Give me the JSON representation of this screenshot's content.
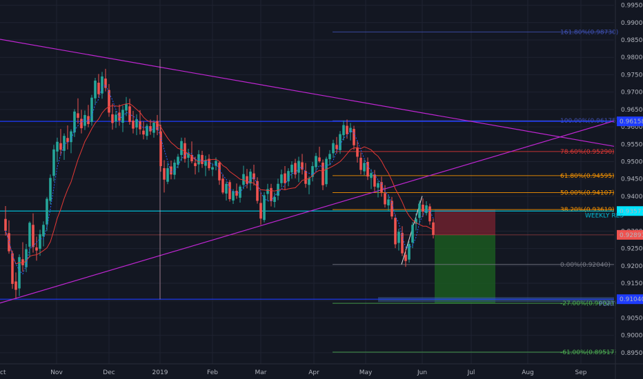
{
  "colors": {
    "background": "#131722",
    "grid": "#1f2331",
    "bull": "#26a69a",
    "bear": "#ef5350",
    "ma_red": "#e53935",
    "ma_blue": "#2962ff",
    "trendline": "#c026d3",
    "weekly_res": "#00bcd4",
    "support": "#1e3cff",
    "fib_100": "#3f51b5",
    "fib_786": "#e53935",
    "fib_618": "#ff9800",
    "fib_0": "#787b86",
    "fib_neg": "#4caf50",
    "fib_ext": "#3f51b5",
    "tag_blue": "#1e3cff",
    "tag_cyan": "#00e5ff",
    "tag_red": "#ef5350",
    "risk_zone": "#7a2330",
    "reward_zone": "#1b5e20",
    "support_zone": "#3b5b8c"
  },
  "chart_data": {
    "type": "candlestick",
    "instrument": "USD/CHF (daily)",
    "x_labels": [
      "ct",
      "Nov",
      "Dec",
      "2019",
      "Feb",
      "Mar",
      "Apr",
      "May",
      "Jun",
      "Jul",
      "Aug",
      "Sep"
    ],
    "y_ticks": [
      "0.99500",
      "0.99000",
      "0.98500",
      "0.98000",
      "0.97500",
      "0.97000",
      "0.96500",
      "0.96000",
      "0.95500",
      "0.95000",
      "0.94500",
      "0.94000",
      "0.93500",
      "0.93000",
      "0.92500",
      "0.92000",
      "0.91500",
      "0.91000",
      "0.90500",
      "0.90000",
      "0.89500"
    ],
    "ylim": [
      0.8918,
      0.9965
    ],
    "price_tags": [
      {
        "label": "0.96158",
        "value": 0.96158,
        "kind": "blue"
      },
      {
        "label": "0.93577",
        "value": 0.93577,
        "kind": "cyan"
      },
      {
        "label": "0.92891",
        "value": 0.92891,
        "kind": "red"
      },
      {
        "label": "0.91040",
        "value": 0.9104,
        "kind": "blue"
      }
    ],
    "fib_levels": [
      {
        "label": "161.80%(0.98730)",
        "value": 0.9873,
        "kind": "fib_ext"
      },
      {
        "label": "100.00%(0.96175)",
        "value": 0.96175,
        "kind": "fib_100"
      },
      {
        "label": "78.60%(0.95290)",
        "value": 0.9529,
        "kind": "fib_786"
      },
      {
        "label": "61.80%(0.94595)",
        "value": 0.94595,
        "kind": "fib_618"
      },
      {
        "label": "50.00%(0.94107)",
        "value": 0.94107,
        "kind": "fib_618"
      },
      {
        "label": "38.20%(0.93619)",
        "value": 0.93619,
        "kind": "fib_618"
      },
      {
        "label": "0.00%(0.92040)",
        "value": 0.9204,
        "kind": "fib_0"
      },
      {
        "label": "-27.00%(0.90923)",
        "value": 0.90923,
        "kind": "fib_neg"
      },
      {
        "label": "-61.00%(0.89517)",
        "value": 0.89517,
        "kind": "fib_neg"
      }
    ],
    "annotations": {
      "weekly_res_label": "WEEKLY RES",
      "support_label": "PORT",
      "weekly_res_price": 0.93577,
      "support_price": 0.9104,
      "entry_price": 0.92891,
      "stop_price": 0.93619,
      "target_price": 0.90923
    },
    "candles": [
      [
        0.9335,
        0.9372,
        0.9287,
        0.9301
      ],
      [
        0.9294,
        0.9331,
        0.9235,
        0.9242
      ],
      [
        0.9236,
        0.9244,
        0.9134,
        0.9148
      ],
      [
        0.9155,
        0.9181,
        0.9106,
        0.9131
      ],
      [
        0.9135,
        0.9233,
        0.9113,
        0.9225
      ],
      [
        0.9219,
        0.9268,
        0.9183,
        0.9202
      ],
      [
        0.9196,
        0.9263,
        0.9182,
        0.9248
      ],
      [
        0.9255,
        0.9328,
        0.9224,
        0.9324
      ],
      [
        0.9318,
        0.9351,
        0.9238,
        0.9254
      ],
      [
        0.9253,
        0.9284,
        0.9215,
        0.9244
      ],
      [
        0.9249,
        0.9304,
        0.9229,
        0.9291
      ],
      [
        0.9285,
        0.9328,
        0.9256,
        0.9318
      ],
      [
        0.9319,
        0.9398,
        0.9301,
        0.9393
      ],
      [
        0.9387,
        0.9463,
        0.9377,
        0.9453
      ],
      [
        0.9459,
        0.9548,
        0.9443,
        0.9535
      ],
      [
        0.9529,
        0.9569,
        0.9499,
        0.9557
      ],
      [
        0.9553,
        0.9594,
        0.9517,
        0.9534
      ],
      [
        0.9531,
        0.9581,
        0.9505,
        0.9574
      ],
      [
        0.9568,
        0.9604,
        0.9535,
        0.9556
      ],
      [
        0.9556,
        0.9593,
        0.9524,
        0.9587
      ],
      [
        0.9584,
        0.9651,
        0.9571,
        0.9644
      ],
      [
        0.9639,
        0.9682,
        0.9609,
        0.9626
      ],
      [
        0.9623,
        0.9649,
        0.9581,
        0.9596
      ],
      [
        0.9603,
        0.9647,
        0.9591,
        0.9634
      ],
      [
        0.9631,
        0.9663,
        0.9599,
        0.9608
      ],
      [
        0.9614,
        0.9692,
        0.9603,
        0.9684
      ],
      [
        0.9682,
        0.9741,
        0.9664,
        0.9733
      ],
      [
        0.9727,
        0.9752,
        0.9684,
        0.9694
      ],
      [
        0.9696,
        0.9758,
        0.9681,
        0.9745
      ],
      [
        0.9739,
        0.9767,
        0.9702,
        0.9712
      ],
      [
        0.9706,
        0.9723,
        0.9629,
        0.9641
      ],
      [
        0.9636,
        0.9667,
        0.9592,
        0.9611
      ],
      [
        0.9615,
        0.9646,
        0.9597,
        0.9635
      ],
      [
        0.9641,
        0.9664,
        0.9603,
        0.9618
      ],
      [
        0.9612,
        0.9661,
        0.9585,
        0.9649
      ],
      [
        0.9647,
        0.9686,
        0.9631,
        0.9665
      ],
      [
        0.9659,
        0.9681,
        0.9606,
        0.9614
      ],
      [
        0.9618,
        0.9646,
        0.9581,
        0.9595
      ],
      [
        0.9598,
        0.9636,
        0.9576,
        0.9622
      ],
      [
        0.9616,
        0.9648,
        0.9578,
        0.9593
      ],
      [
        0.9589,
        0.9616,
        0.9564,
        0.9578
      ],
      [
        0.9574,
        0.9609,
        0.9563,
        0.9603
      ],
      [
        0.9602,
        0.9621,
        0.9577,
        0.9587
      ],
      [
        0.9583,
        0.9619,
        0.9569,
        0.9612
      ],
      [
        0.9617,
        0.9634,
        0.9576,
        0.9591
      ],
      [
        0.9587,
        0.9606,
        0.9471,
        0.9487
      ],
      [
        0.9481,
        0.9504,
        0.9411,
        0.9448
      ],
      [
        0.9442,
        0.9496,
        0.9435,
        0.9481
      ],
      [
        0.9486,
        0.9503,
        0.9449,
        0.9463
      ],
      [
        0.9462,
        0.9506,
        0.9449,
        0.9497
      ],
      [
        0.9491,
        0.9522,
        0.9481,
        0.9514
      ],
      [
        0.9519,
        0.9569,
        0.9502,
        0.9559
      ],
      [
        0.9553,
        0.9569,
        0.9497,
        0.9508
      ],
      [
        0.9511,
        0.9537,
        0.9482,
        0.9524
      ],
      [
        0.9519,
        0.9558,
        0.9495,
        0.9501
      ],
      [
        0.9496,
        0.9514,
        0.9463,
        0.9487
      ],
      [
        0.9492,
        0.9533,
        0.9469,
        0.9521
      ],
      [
        0.9519,
        0.9531,
        0.9482,
        0.9493
      ],
      [
        0.9488,
        0.9517,
        0.9458,
        0.9504
      ],
      [
        0.9508,
        0.9521,
        0.9474,
        0.9481
      ],
      [
        0.9477,
        0.9496,
        0.9458,
        0.9484
      ],
      [
        0.9488,
        0.9512,
        0.9475,
        0.9502
      ],
      [
        0.9497,
        0.9501,
        0.9433,
        0.9446
      ],
      [
        0.9451,
        0.9464,
        0.9406,
        0.9411
      ],
      [
        0.9408,
        0.9443,
        0.9388,
        0.9436
      ],
      [
        0.9441,
        0.9447,
        0.9385,
        0.9392
      ],
      [
        0.9388,
        0.9421,
        0.9378,
        0.9415
      ],
      [
        0.9416,
        0.9437,
        0.9393,
        0.9402
      ],
      [
        0.9396,
        0.9433,
        0.9382,
        0.9428
      ],
      [
        0.9433,
        0.9488,
        0.9421,
        0.9464
      ],
      [
        0.9458,
        0.9479,
        0.9423,
        0.9436
      ],
      [
        0.9437,
        0.9479,
        0.9417,
        0.9471
      ],
      [
        0.9466,
        0.9491,
        0.9431,
        0.9449
      ],
      [
        0.9444,
        0.9455,
        0.9379,
        0.9387
      ],
      [
        0.9381,
        0.9413,
        0.9318,
        0.9336
      ],
      [
        0.9332,
        0.9412,
        0.9325,
        0.9403
      ],
      [
        0.9407,
        0.9436,
        0.9387,
        0.9421
      ],
      [
        0.9424,
        0.9436,
        0.9371,
        0.9386
      ],
      [
        0.9384,
        0.9411,
        0.9368,
        0.9398
      ],
      [
        0.9402,
        0.9451,
        0.9389,
        0.9436
      ],
      [
        0.9438,
        0.9477,
        0.9426,
        0.9463
      ],
      [
        0.9466,
        0.9487,
        0.9418,
        0.9438
      ],
      [
        0.9443,
        0.9481,
        0.9429,
        0.9473
      ],
      [
        0.9469,
        0.9501,
        0.9451,
        0.9491
      ],
      [
        0.9496,
        0.9508,
        0.9452,
        0.9463
      ],
      [
        0.9468,
        0.9514,
        0.9441,
        0.9502
      ],
      [
        0.9498,
        0.9522,
        0.9463,
        0.9477
      ],
      [
        0.9473,
        0.9496,
        0.9425,
        0.9436
      ],
      [
        0.9433,
        0.9457,
        0.9406,
        0.9452
      ],
      [
        0.9456,
        0.9499,
        0.9443,
        0.9487
      ],
      [
        0.9484,
        0.9525,
        0.9471,
        0.9516
      ],
      [
        0.9512,
        0.9543,
        0.9497,
        0.9501
      ],
      [
        0.9497,
        0.9506,
        0.9418,
        0.9432
      ],
      [
        0.9435,
        0.9514,
        0.9427,
        0.9508
      ],
      [
        0.9507,
        0.9533,
        0.9489,
        0.9522
      ],
      [
        0.9524,
        0.9563,
        0.9511,
        0.9553
      ],
      [
        0.9548,
        0.9571,
        0.9523,
        0.9536
      ],
      [
        0.9533,
        0.9588,
        0.9522,
        0.9579
      ],
      [
        0.9576,
        0.9618,
        0.9561,
        0.9605
      ],
      [
        0.9603,
        0.9621,
        0.9566,
        0.9579
      ],
      [
        0.9584,
        0.9611,
        0.9561,
        0.9597
      ],
      [
        0.9594,
        0.9603,
        0.9534,
        0.9547
      ],
      [
        0.9541,
        0.9559,
        0.9497,
        0.9514
      ],
      [
        0.9511,
        0.9526,
        0.9463,
        0.9476
      ],
      [
        0.9472,
        0.9506,
        0.9461,
        0.9496
      ],
      [
        0.9499,
        0.9512,
        0.9447,
        0.9457
      ],
      [
        0.9453,
        0.9478,
        0.9421,
        0.9467
      ],
      [
        0.9463,
        0.9476,
        0.9415,
        0.9428
      ],
      [
        0.9425,
        0.9446,
        0.9397,
        0.9438
      ],
      [
        0.9441,
        0.9457,
        0.9399,
        0.9412
      ],
      [
        0.9409,
        0.9432,
        0.9368,
        0.9377
      ],
      [
        0.9374,
        0.9405,
        0.9359,
        0.9391
      ],
      [
        0.9387,
        0.9398,
        0.9334,
        0.9342
      ],
      [
        0.9338,
        0.9348,
        0.9251,
        0.9262
      ],
      [
        0.9266,
        0.9307,
        0.9244,
        0.9298
      ],
      [
        0.9295,
        0.9314,
        0.9228,
        0.9236
      ],
      [
        0.9232,
        0.9248,
        0.9197,
        0.9214
      ],
      [
        0.9218,
        0.9271,
        0.9209,
        0.9263
      ],
      [
        0.9267,
        0.9326,
        0.9251,
        0.9318
      ],
      [
        0.9321,
        0.9351,
        0.9302,
        0.9335
      ],
      [
        0.9338,
        0.9388,
        0.9321,
        0.9379
      ],
      [
        0.9376,
        0.9394,
        0.9341,
        0.9356
      ],
      [
        0.9352,
        0.9386,
        0.9345,
        0.9374
      ],
      [
        0.9371,
        0.9379,
        0.9318,
        0.9328
      ],
      [
        0.9325,
        0.9336,
        0.9279,
        0.9289
      ]
    ]
  }
}
